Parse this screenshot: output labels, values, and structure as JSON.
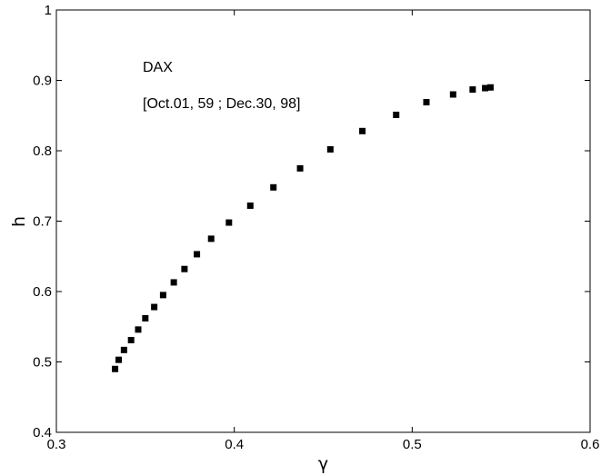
{
  "chart_data": {
    "type": "scatter",
    "title": "",
    "xlabel": "γ",
    "ylabel": "h",
    "xlim": [
      0.3,
      0.6
    ],
    "ylim": [
      0.4,
      1.0
    ],
    "xticks": [
      "0.3",
      "0.4",
      "0.5",
      "0.6"
    ],
    "yticks": [
      "0.4",
      "0.5",
      "0.6",
      "0.7",
      "0.8",
      "0.9",
      "1"
    ],
    "grid": false,
    "marker": "square",
    "marker_color": "#000000",
    "annotations": [
      "DAX",
      "[Oct.01, 59 ; Dec.30, 98]"
    ],
    "series": [
      {
        "x": [
          0.333,
          0.335,
          0.338,
          0.342,
          0.346,
          0.35,
          0.355,
          0.36,
          0.366,
          0.372,
          0.379,
          0.387,
          0.397,
          0.409,
          0.422,
          0.437,
          0.454,
          0.472,
          0.491,
          0.508,
          0.523,
          0.534,
          0.541,
          0.544
        ],
        "y": [
          0.49,
          0.503,
          0.517,
          0.531,
          0.546,
          0.562,
          0.578,
          0.595,
          0.613,
          0.632,
          0.653,
          0.675,
          0.698,
          0.722,
          0.748,
          0.775,
          0.802,
          0.828,
          0.851,
          0.869,
          0.88,
          0.887,
          0.889,
          0.89
        ]
      }
    ]
  }
}
